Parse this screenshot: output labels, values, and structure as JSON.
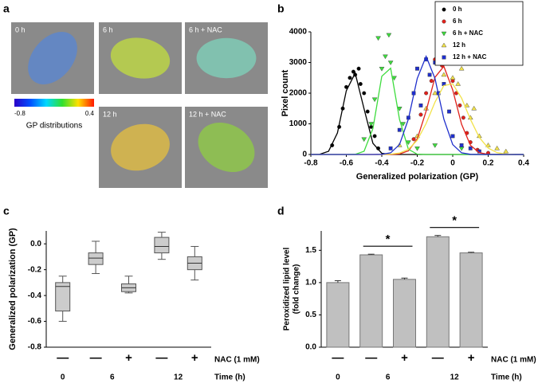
{
  "panel_a": {
    "panel": "a",
    "images": [
      {
        "label": "0 h",
        "color": "#5f86c8"
      },
      {
        "label": "6 h",
        "color": "#b8cf4a"
      },
      {
        "label": "6 h + NAC",
        "color": "#7fc6b2"
      },
      {
        "label": "12 h",
        "color": "#d6b64a"
      },
      {
        "label": "12 h + NAC",
        "color": "#8ec24e"
      }
    ],
    "colorbar": {
      "min": -0.8,
      "max": 0.4,
      "title": "GP distributions"
    }
  },
  "chart_data": [
    {
      "type": "scatter",
      "panel": "b",
      "xlabel": "Generalized polarization (GP)",
      "ylabel": "Pixel count",
      "xlim": [
        -0.8,
        0.4
      ],
      "ylim": [
        0,
        4000
      ],
      "xticks": [
        -0.8,
        -0.6,
        -0.4,
        -0.2,
        0,
        0.2,
        0.4
      ],
      "yticks": [
        0,
        1000,
        2000,
        3000,
        4000
      ],
      "legend": "top-right",
      "fit_x": [
        -0.8,
        -0.75,
        -0.7,
        -0.65,
        -0.6,
        -0.55,
        -0.5,
        -0.45,
        -0.4,
        -0.35,
        -0.3,
        -0.25,
        -0.2,
        -0.15,
        -0.1,
        -0.05,
        0,
        0.05,
        0.1,
        0.15,
        0.2,
        0.25,
        0.3,
        0.35,
        0.4
      ],
      "series": [
        {
          "name": "0 h",
          "color": "#000000",
          "marker": "circle",
          "x": [
            -0.68,
            -0.64,
            -0.62,
            -0.6,
            -0.58,
            -0.56,
            -0.55,
            -0.53,
            -0.52,
            -0.5,
            -0.48,
            -0.46,
            -0.44,
            -0.42
          ],
          "values": [
            300,
            900,
            1500,
            2200,
            2500,
            2700,
            2600,
            2800,
            2300,
            2000,
            1400,
            900,
            600,
            200
          ],
          "fit": [
            0,
            7,
            105,
            705,
            2080,
            2655,
            1490,
            365,
            40,
            2,
            0,
            0,
            0,
            0,
            0,
            0,
            0,
            0,
            0,
            0,
            0,
            0,
            0,
            0,
            0
          ]
        },
        {
          "name": "6 h",
          "color": "#e0211b",
          "marker": "circle",
          "x": [
            -0.22,
            -0.18,
            -0.15,
            -0.12,
            -0.1,
            -0.08,
            -0.06,
            -0.04,
            -0.02,
            0,
            0.02,
            0.04,
            0.06,
            0.08,
            0.1,
            0.14,
            0.2
          ],
          "values": [
            500,
            1300,
            2000,
            2400,
            3100,
            3400,
            2900,
            3200,
            3000,
            2400,
            2000,
            1600,
            1200,
            700,
            400,
            150,
            50
          ],
          "fit": [
            0,
            0,
            0,
            0,
            0,
            0,
            0,
            0,
            0,
            2,
            17,
            118,
            508,
            1413,
            2517,
            2874,
            2106,
            986,
            299,
            58,
            7,
            0,
            0,
            0,
            0
          ]
        },
        {
          "name": "6 h + NAC",
          "color": "#3ddc3d",
          "marker": "triangle-down",
          "x": [
            -0.5,
            -0.46,
            -0.44,
            -0.42,
            -0.4,
            -0.38,
            -0.36,
            -0.35,
            -0.33,
            -0.3,
            -0.28,
            -0.25,
            -0.2,
            -0.1,
            0.05
          ],
          "values": [
            500,
            1000,
            1800,
            3800,
            2800,
            3200,
            3900,
            3000,
            2500,
            1500,
            1000,
            400,
            200,
            300,
            200
          ],
          "fit": [
            0,
            0,
            0,
            0,
            0,
            5,
            104,
            846,
            2550,
            2815,
            1145,
            171,
            9,
            0,
            0,
            0,
            0,
            0,
            0,
            0,
            0,
            0,
            0,
            0,
            0
          ]
        },
        {
          "name": "12 h",
          "color": "#f2e24a",
          "marker": "triangle-up",
          "x": [
            -0.3,
            -0.2,
            -0.15,
            -0.1,
            -0.05,
            -0.02,
            0,
            0.03,
            0.05,
            0.08,
            0.1,
            0.12,
            0.15,
            0.2,
            0.25,
            0.3
          ],
          "values": [
            300,
            600,
            1500,
            2000,
            2600,
            3000,
            2500,
            2300,
            2800,
            1600,
            1200,
            1500,
            600,
            300,
            200,
            100
          ],
          "fit": [
            0,
            0,
            0,
            0,
            0,
            0,
            0,
            0,
            2,
            10,
            47,
            167,
            465,
            1009,
            1707,
            2247,
            2304,
            1839,
            1144,
            554,
            209,
            61,
            14,
            3,
            0
          ]
        },
        {
          "name": "12 h + NAC",
          "color": "#1f2fcc",
          "marker": "square",
          "x": [
            -0.35,
            -0.3,
            -0.25,
            -0.22,
            -0.2,
            -0.18,
            -0.15,
            -0.13,
            -0.1,
            -0.08,
            -0.05,
            -0.02,
            0,
            0.05,
            0.1,
            0.15
          ],
          "values": [
            200,
            800,
            1200,
            2000,
            2800,
            1600,
            3100,
            2600,
            3000,
            2000,
            2300,
            1400,
            600,
            300,
            200,
            100
          ],
          "fit": [
            0,
            0,
            0,
            0,
            0,
            0,
            0,
            0,
            5,
            54,
            323,
            1155,
            2480,
            3200,
            2480,
            1155,
            323,
            54,
            5,
            0,
            0,
            0,
            0,
            0,
            0
          ]
        }
      ]
    },
    {
      "type": "box",
      "panel": "c",
      "ylabel": "Generalized polarization (GP)",
      "ylim": [
        -0.8,
        0.1
      ],
      "yticks": [
        {
          "value": 0,
          "label": "0.0"
        },
        -0.2,
        -0.4,
        -0.6,
        -0.8
      ],
      "categories": [
        "—",
        "—",
        "+",
        "—",
        "+"
      ],
      "nac_label": "NAC (1 mM)",
      "time_label": "Time (h)",
      "time_groups": [
        {
          "label": "0",
          "count": 1
        },
        {
          "label": "6",
          "count": 2
        },
        {
          "label": "12",
          "count": 2
        }
      ],
      "color": "#cccccc",
      "boxes": [
        {
          "min": -0.6,
          "q1": -0.52,
          "median": -0.33,
          "q3": -0.3,
          "max": -0.25
        },
        {
          "min": -0.23,
          "q1": -0.16,
          "median": -0.11,
          "q3": -0.07,
          "max": 0.02
        },
        {
          "min": -0.38,
          "q1": -0.37,
          "median": -0.34,
          "q3": -0.31,
          "max": -0.25
        },
        {
          "min": -0.12,
          "q1": -0.07,
          "median": -0.02,
          "q3": 0.05,
          "max": 0.09
        },
        {
          "min": -0.28,
          "q1": -0.2,
          "median": -0.15,
          "q3": -0.1,
          "max": -0.02
        }
      ]
    },
    {
      "type": "bar",
      "panel": "d",
      "ylabel": [
        "Peroxidized lipid level",
        "(fold change)"
      ],
      "ylim": [
        0,
        1.8
      ],
      "yticks": [
        {
          "value": 0,
          "label": "0.0"
        },
        0.5,
        {
          "value": 1,
          "label": "1.0"
        },
        1.5
      ],
      "categories": [
        "—",
        "—",
        "+",
        "—",
        "+"
      ],
      "nac_label": "NAC (1 mM)",
      "time_label": "Time (h)",
      "time_groups": [
        {
          "label": "0",
          "count": 1
        },
        {
          "label": "6",
          "count": 2
        },
        {
          "label": "12",
          "count": 2
        }
      ],
      "color": "#c0c0c0",
      "values": [
        1.0,
        1.43,
        1.05,
        1.71,
        1.46
      ],
      "errors": [
        0.03,
        0.01,
        0.02,
        0.02,
        0.01
      ],
      "annotations": [
        {
          "text": "*",
          "from": 1,
          "to": 2
        },
        {
          "text": "*",
          "from": 3,
          "to": 4
        }
      ]
    }
  ]
}
